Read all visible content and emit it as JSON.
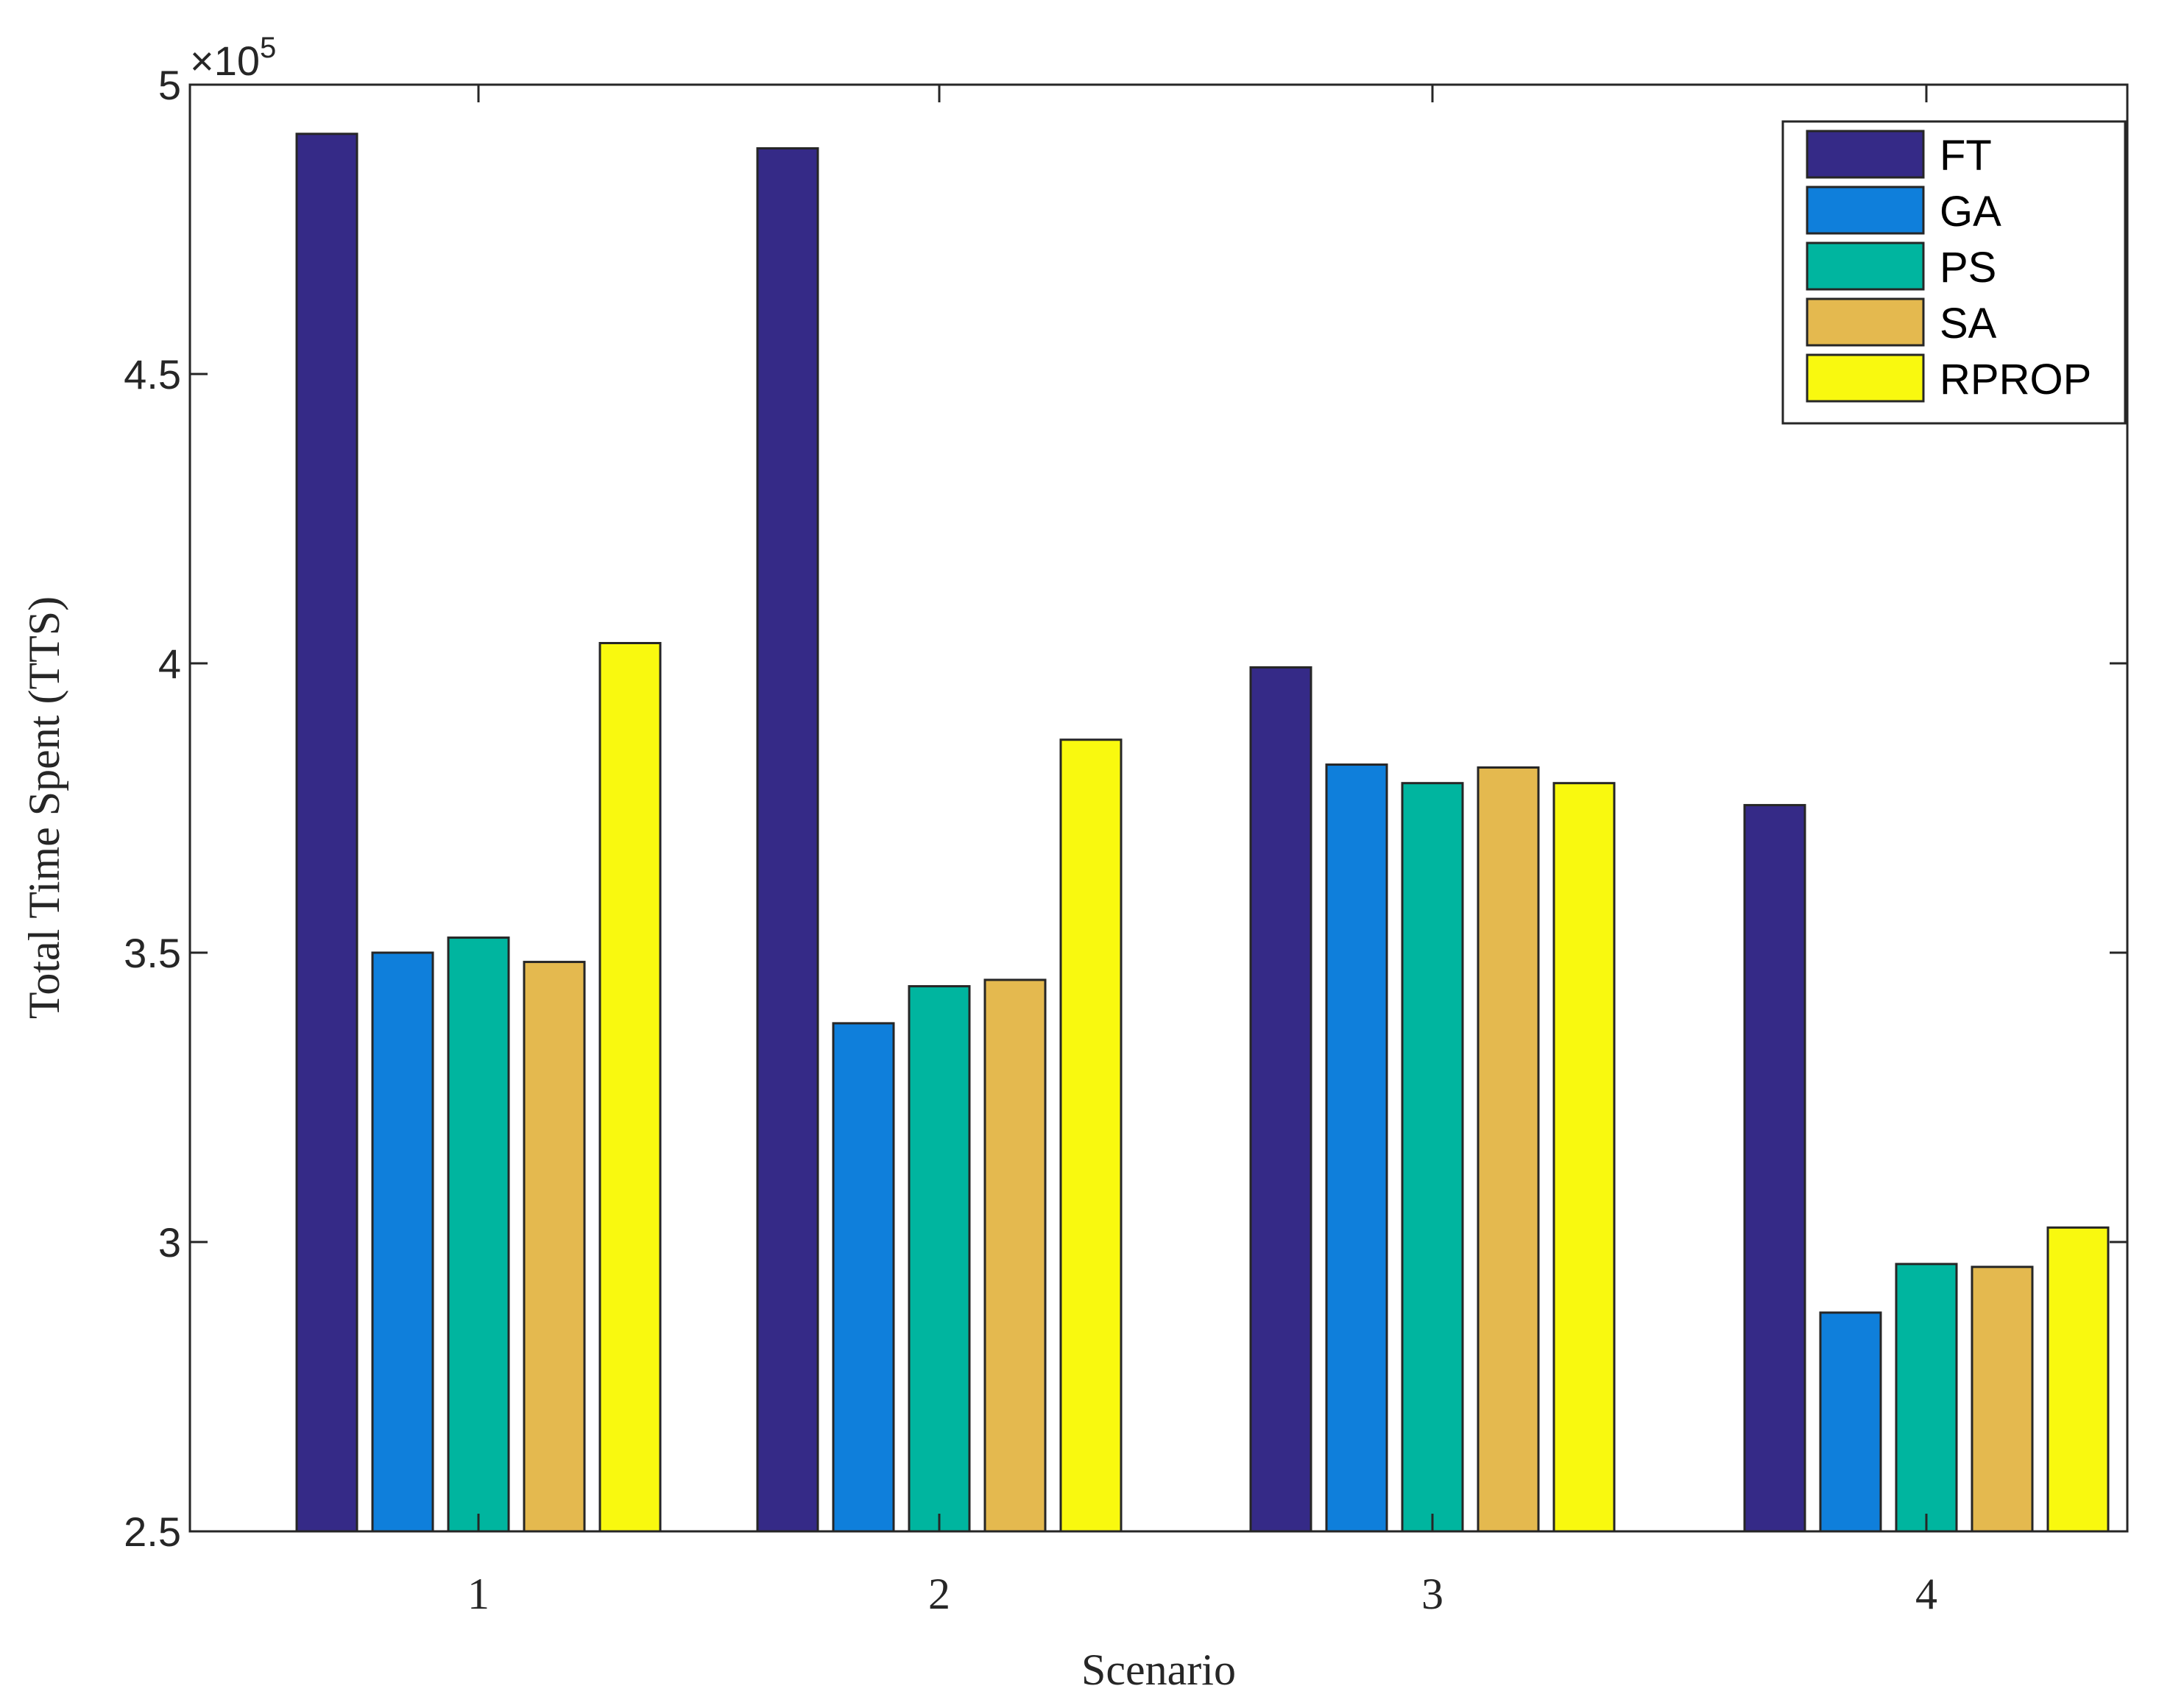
{
  "chart_data": {
    "type": "bar",
    "title": "",
    "xlabel": "Scenario",
    "ylabel": "Total Time Spent (TTS)",
    "categories": [
      "1",
      "2",
      "3",
      "4"
    ],
    "ylim": [
      250000,
      500000
    ],
    "yticks": [
      250000,
      300000,
      350000,
      400000,
      450000,
      500000
    ],
    "ytick_labels": [
      "2.5",
      "3",
      "3.5",
      "4",
      "4.5",
      "5"
    ],
    "y_multiplier_base": "×10",
    "y_multiplier_exp": "5",
    "legend_position": "top-right",
    "series": [
      {
        "name": "FT",
        "color": "#352a87",
        "values": [
          491500,
          489000,
          399300,
          375500
        ]
      },
      {
        "name": "GA",
        "color": "#0f7fdb",
        "values": [
          350000,
          337800,
          382500,
          287800
        ]
      },
      {
        "name": "PS",
        "color": "#00b59f",
        "values": [
          352600,
          344200,
          379300,
          296200
        ]
      },
      {
        "name": "SA",
        "color": "#e4b94f",
        "values": [
          348400,
          345300,
          382000,
          295700
        ]
      },
      {
        "name": "RPROP",
        "color": "#f9f90f",
        "values": [
          403500,
          386800,
          379300,
          302500
        ]
      }
    ]
  }
}
